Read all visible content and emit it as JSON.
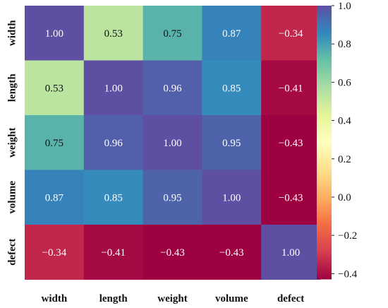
{
  "chart_data": {
    "type": "heatmap",
    "title": "",
    "xlabel": "",
    "ylabel": "",
    "x_labels": [
      "width",
      "length",
      "weight",
      "volume",
      "defect"
    ],
    "y_labels": [
      "width",
      "length",
      "weight",
      "volume",
      "defect"
    ],
    "values": [
      [
        1.0,
        0.53,
        0.75,
        0.87,
        -0.34
      ],
      [
        0.53,
        1.0,
        0.96,
        0.85,
        -0.41
      ],
      [
        0.75,
        0.96,
        1.0,
        0.95,
        -0.43
      ],
      [
        0.87,
        0.85,
        0.95,
        1.0,
        -0.43
      ],
      [
        -0.34,
        -0.41,
        -0.43,
        -0.43,
        1.0
      ]
    ],
    "value_labels": [
      [
        "1.00",
        "0.53",
        "0.75",
        "0.87",
        "−0.34"
      ],
      [
        "0.53",
        "1.00",
        "0.96",
        "0.85",
        "−0.41"
      ],
      [
        "0.75",
        "0.96",
        "1.00",
        "0.95",
        "−0.43"
      ],
      [
        "0.87",
        "0.85",
        "0.95",
        "1.00",
        "−0.43"
      ],
      [
        "−0.34",
        "−0.41",
        "−0.43",
        "−0.43",
        "1.00"
      ]
    ],
    "colorbar": {
      "range": [
        -0.43,
        1.0
      ],
      "ticks": [
        1.0,
        0.8,
        0.6,
        0.4,
        0.2,
        0.0,
        -0.2,
        -0.4
      ],
      "tick_labels": [
        "1.0",
        "0.8",
        "0.6",
        "0.4",
        "0.2",
        "0.0",
        "−0.2",
        "−0.4"
      ]
    },
    "colormap": "Spectral",
    "colormap_stops": [
      "#9e0142",
      "#d53e4f",
      "#f46d43",
      "#fdae61",
      "#fee08b",
      "#ffffbf",
      "#e6f598",
      "#abdda4",
      "#66c2a5",
      "#3288bd",
      "#5e4fa2"
    ],
    "grid": false,
    "legend": "colorbar-right"
  }
}
